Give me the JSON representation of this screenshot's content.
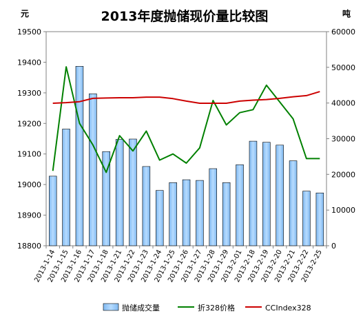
{
  "chart_data": {
    "type": "bar+line",
    "title": "2013年度抛储现价量比较图",
    "left_unit": "元",
    "right_unit": "吨",
    "left_axis": {
      "ylim": [
        18800,
        19500
      ],
      "ticks": [
        "18800",
        "18900",
        "19000",
        "19100",
        "19200",
        "19300",
        "19400",
        "19500"
      ]
    },
    "right_axis": {
      "ylim": [
        0,
        60000
      ],
      "ticks": [
        "0",
        "10000",
        "20000",
        "30000",
        "40000",
        "50000",
        "60000"
      ]
    },
    "categories": [
      "2013-1-14",
      "2013-1-15",
      "2013-1-16",
      "2013-1-17",
      "2013-1-18",
      "2013-1-21",
      "2013-1-22",
      "2013-1-23",
      "2013-1-24",
      "2013-1-25",
      "2013-1-26",
      "2013-1-27",
      "2013-1-28",
      "2013-1-29",
      "2013-2-01",
      "2013-2-18",
      "2013-2-19",
      "2013-2-20",
      "2013-2-21",
      "2013-2-22",
      "2013-2-25"
    ],
    "series": [
      {
        "name": "抛储成交量",
        "type": "bar",
        "axis": "right",
        "color": "#99ccff",
        "values": [
          19500,
          32700,
          50300,
          42600,
          26400,
          29800,
          29900,
          22200,
          15500,
          17700,
          18500,
          18300,
          21600,
          17700,
          22700,
          29300,
          29000,
          28200,
          23800,
          15300,
          14800
        ]
      },
      {
        "name": "折328价格",
        "type": "line",
        "axis": "left",
        "color": "#008000",
        "values": [
          19045,
          19385,
          19200,
          19130,
          19040,
          19160,
          19110,
          19175,
          19080,
          19100,
          19070,
          19120,
          19275,
          19195,
          19235,
          19245,
          19325,
          19270,
          19215,
          19085,
          19085
        ]
      },
      {
        "name": "CCIndex328",
        "type": "line",
        "axis": "left",
        "color": "#cc0000",
        "values": [
          19266,
          19268,
          19271,
          19282,
          19283,
          19284,
          19284,
          19286,
          19286,
          19281,
          19273,
          19266,
          19266,
          19266,
          19273,
          19276,
          19278,
          19282,
          19287,
          19291,
          19304
        ]
      }
    ],
    "legend": "bottom",
    "grid": false
  }
}
